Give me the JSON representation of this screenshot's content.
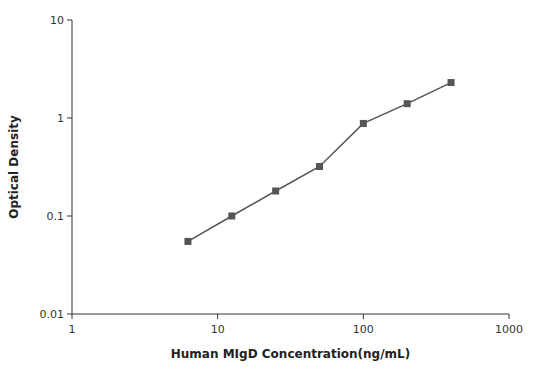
{
  "chart_data": {
    "type": "line",
    "x": [
      6.25,
      12.5,
      25,
      50,
      100,
      200,
      400
    ],
    "values": [
      0.055,
      0.1,
      0.18,
      0.32,
      0.88,
      1.4,
      2.3
    ],
    "color": "#555555",
    "marker": "square",
    "xlabel": "Human MIgD Concentration(ng/mL)",
    "ylabel": "Optical Density",
    "xlim": [
      1,
      1000
    ],
    "ylim": [
      0.01,
      10
    ],
    "xticks": [
      1,
      10,
      100,
      1000
    ],
    "yticks": [
      0.01,
      0.1,
      1,
      10
    ],
    "log": true,
    "grid": false
  }
}
